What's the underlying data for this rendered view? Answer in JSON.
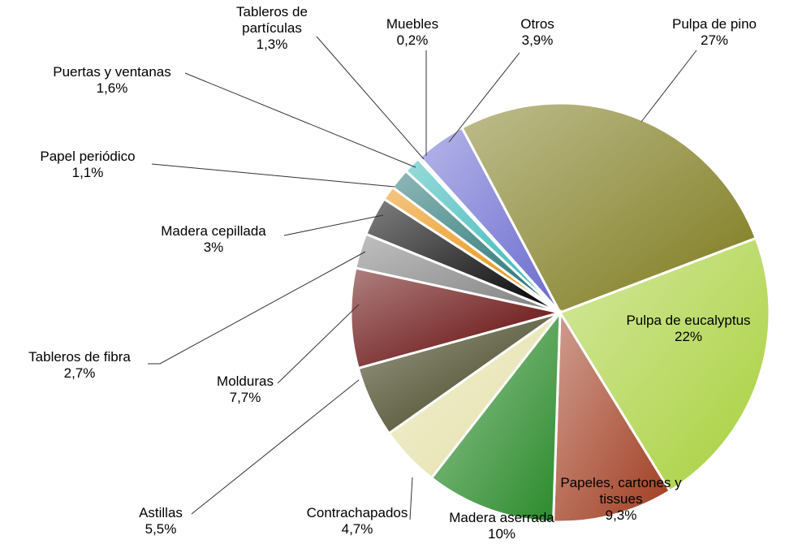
{
  "chart_data": {
    "type": "pie",
    "categories": [
      "Pulpa de pino",
      "Pulpa de eucalyptus",
      "Papeles, cartones y tissues",
      "Madera aserrada",
      "Contrachapados",
      "Astillas",
      "Molduras",
      "Tableros de fibra",
      "Madera cepillada",
      "Papel periódico",
      "Puertas y ventanas",
      "Tableros de partículas",
      "Muebles",
      "Otros"
    ],
    "values": [
      27,
      22,
      9.3,
      10,
      4.7,
      5.5,
      7.7,
      2.7,
      3,
      1.1,
      1.6,
      1.3,
      0.2,
      3.9
    ],
    "value_labels": [
      "27%",
      "22%",
      "9,3%",
      "10%",
      "4,7%",
      "5,5%",
      "7,7%",
      "2,7%",
      "3%",
      "1,1%",
      "1,6%",
      "1,3%",
      "0,2%",
      "3,9%"
    ],
    "colors": [
      "#7d7a1c",
      "#a8d03c",
      "#a03c20",
      "#2a8a2a",
      "#e4e0a8",
      "#3a3a16",
      "#5e0000",
      "#808080",
      "#000000",
      "#e88a00",
      "#1e6e6e",
      "#30b4b4",
      "#a01818",
      "#6a6ad0"
    ]
  }
}
